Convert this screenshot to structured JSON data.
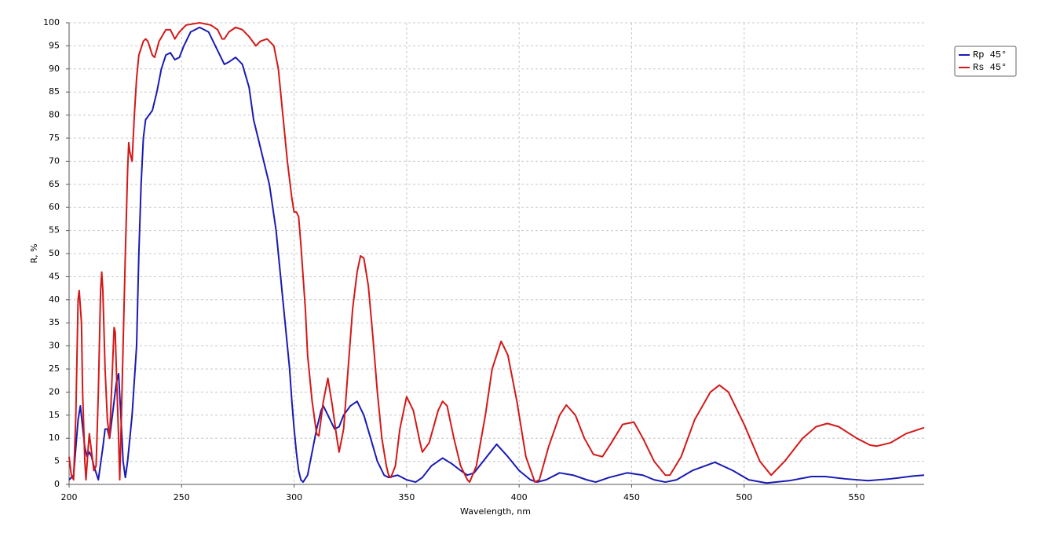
{
  "chart_data": {
    "type": "line",
    "xlabel": "Wavelength, nm",
    "ylabel": "R, %",
    "xlim": [
      200,
      580
    ],
    "xticks": [
      200,
      250,
      300,
      350,
      400,
      450,
      500,
      550
    ],
    "ylim": [
      0,
      100
    ],
    "yticks": [
      0,
      5,
      10,
      15,
      20,
      25,
      30,
      35,
      40,
      45,
      50,
      55,
      60,
      65,
      70,
      75,
      80,
      85,
      90,
      95,
      100
    ],
    "grid": true,
    "legend": "outside-right",
    "series": [
      {
        "name": "Rp 45°",
        "color": "#1a1ab4",
        "x": [
          200,
          202,
          204,
          205,
          207,
          208,
          209,
          210,
          211,
          213,
          215,
          216,
          217,
          218,
          219,
          221,
          222,
          223,
          224,
          225,
          226,
          228,
          230,
          231,
          232,
          233,
          234,
          237,
          239,
          241,
          243,
          245,
          247,
          249,
          251,
          254,
          258,
          262,
          265,
          269,
          271,
          274,
          277,
          280,
          282,
          285,
          289,
          292,
          294,
          296,
          298,
          299,
          300,
          301,
          302,
          303,
          304,
          306,
          308,
          310,
          312,
          313,
          315,
          318,
          320,
          322,
          325,
          328,
          331,
          334,
          337,
          340,
          342,
          346,
          350,
          354,
          357,
          361,
          366,
          370,
          374,
          377,
          380,
          384,
          390,
          395,
          400,
          405,
          408,
          412,
          418,
          424,
          430,
          434,
          440,
          448,
          455,
          460,
          465,
          470,
          477,
          487,
          495,
          502,
          510,
          520,
          530,
          536,
          545,
          555,
          565,
          575,
          580
        ],
        "values": [
          1,
          2,
          14,
          17,
          8,
          6,
          7,
          6,
          4,
          1,
          8,
          12,
          12,
          10,
          14,
          22,
          24,
          15,
          5,
          1.5,
          5,
          15,
          30,
          50,
          65,
          75,
          79,
          81,
          85,
          90,
          93,
          93.5,
          92,
          92.5,
          95,
          98,
          99,
          98,
          95,
          91,
          91.5,
          92.5,
          91,
          86,
          79,
          73,
          65,
          55,
          45,
          35,
          25,
          18,
          12,
          7,
          3,
          1,
          0.5,
          2,
          7,
          12,
          16,
          17,
          15,
          12,
          12.5,
          15,
          17,
          18,
          15,
          10,
          5,
          2,
          1.5,
          2,
          1,
          0.5,
          1.5,
          4,
          5.7,
          4.5,
          3,
          2,
          2.5,
          5,
          8.7,
          6,
          3,
          1,
          0.5,
          1,
          2.5,
          2,
          1,
          0.5,
          1.5,
          2.5,
          2,
          1,
          0.5,
          1,
          3,
          4.8,
          3,
          1,
          0.3,
          0.8,
          1.7,
          1.7,
          1.2,
          0.8,
          1.2,
          1.8,
          2
        ]
      },
      {
        "name": "Rs 45°",
        "color": "#d41818",
        "x": [
          200,
          201,
          202,
          203,
          204,
          204.5,
          205.5,
          206,
          207,
          207.5,
          208.5,
          209,
          210,
          211,
          212,
          213,
          214,
          214.5,
          215,
          216,
          217,
          218,
          219,
          220,
          220.5,
          221,
          222,
          222.5,
          223,
          224,
          225,
          226,
          226.5,
          227,
          228,
          229,
          230,
          231,
          233,
          234,
          235,
          237,
          238,
          240,
          243,
          245,
          247,
          249,
          252,
          258,
          263,
          266,
          268,
          269,
          271,
          274,
          277,
          280,
          283,
          285,
          288,
          291,
          293,
          295,
          297,
          299,
          300,
          301,
          302,
          303,
          304,
          305,
          306,
          308,
          310,
          311,
          313,
          315,
          317,
          319,
          320,
          322,
          324,
          326,
          328,
          329.5,
          331,
          333,
          335,
          337,
          339,
          341,
          342,
          343,
          345,
          347,
          350,
          353,
          356,
          357,
          360,
          364,
          366,
          368,
          371,
          374,
          377,
          378,
          381,
          385,
          388,
          392,
          395,
          399,
          403,
          407,
          409,
          413,
          418,
          421,
          425,
          429,
          433,
          437,
          441,
          446,
          451,
          455,
          460,
          465,
          467,
          472,
          478,
          485,
          489,
          493,
          500,
          507,
          512,
          518,
          526,
          532,
          537,
          542,
          550,
          556,
          559,
          565,
          572,
          580
        ],
        "values": [
          6,
          2,
          1,
          15,
          40,
          42,
          35,
          20,
          5,
          1,
          8,
          11,
          7,
          3,
          4,
          20,
          42,
          46,
          42,
          25,
          14,
          10,
          22,
          34,
          33,
          25,
          10,
          1,
          10,
          30,
          50,
          68,
          74,
          72,
          70,
          80,
          88,
          93,
          96,
          96.5,
          96,
          93,
          92.5,
          96,
          98.5,
          98.5,
          96.5,
          98,
          99.5,
          100,
          99.5,
          98.5,
          96.5,
          96.5,
          98,
          99,
          98.5,
          97,
          95,
          96,
          96.5,
          95,
          90,
          80,
          70,
          62,
          59,
          59,
          58,
          52,
          45,
          38,
          28,
          18,
          11,
          10.5,
          18,
          23,
          17,
          10,
          7,
          12,
          25,
          38,
          46,
          49.5,
          49,
          43,
          32,
          20,
          10,
          4,
          2,
          1.5,
          4,
          12,
          19,
          16,
          9,
          7,
          9,
          16,
          18,
          17,
          10,
          4,
          1,
          0.5,
          4,
          15,
          25,
          31,
          28,
          18,
          6,
          0.5,
          1,
          8,
          15,
          17.2,
          15,
          10,
          6.5,
          6,
          9,
          13,
          13.5,
          10,
          5,
          2,
          2,
          6,
          14,
          20,
          21.5,
          20,
          13,
          5,
          2,
          5,
          10,
          12.5,
          13.2,
          12.5,
          10,
          8.5,
          8.3,
          9,
          11,
          12.3
        ]
      }
    ]
  }
}
